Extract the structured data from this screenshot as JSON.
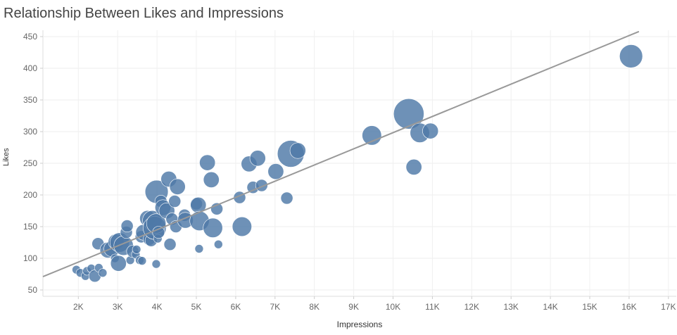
{
  "title": "Relationship Between Likes and Impressions",
  "chart_data": {
    "type": "scatter",
    "title": "Relationship Between Likes and Impressions",
    "xlabel": "Impressions",
    "ylabel": "Likes",
    "xlim": [
      1100,
      17200
    ],
    "ylim": [
      40,
      460
    ],
    "x_ticks": [
      2000,
      3000,
      4000,
      5000,
      6000,
      7000,
      8000,
      9000,
      10000,
      11000,
      12000,
      13000,
      14000,
      15000,
      16000,
      17000
    ],
    "x_tick_labels": [
      "2K",
      "3K",
      "4K",
      "5K",
      "6K",
      "7K",
      "8K",
      "9K",
      "10K",
      "11K",
      "12K",
      "13K",
      "14K",
      "15K",
      "16K",
      "17K"
    ],
    "y_ticks": [
      50,
      100,
      150,
      200,
      250,
      300,
      350,
      400,
      450
    ],
    "y_tick_labels": [
      "50",
      "100",
      "150",
      "200",
      "250",
      "300",
      "350",
      "400",
      "450"
    ],
    "grid": true,
    "marker_color": "#4e79a7",
    "trend_color": "#999999",
    "trendline": {
      "x": [
        1100,
        16250
      ],
      "y": [
        71,
        458
      ]
    },
    "points": [
      {
        "x": 1950,
        "y": 82,
        "s": 1
      },
      {
        "x": 2050,
        "y": 77,
        "s": 1
      },
      {
        "x": 2180,
        "y": 72,
        "s": 1
      },
      {
        "x": 2220,
        "y": 80,
        "s": 1
      },
      {
        "x": 2330,
        "y": 84,
        "s": 1
      },
      {
        "x": 2420,
        "y": 72,
        "s": 2
      },
      {
        "x": 2520,
        "y": 85,
        "s": 1
      },
      {
        "x": 2620,
        "y": 77,
        "s": 1
      },
      {
        "x": 2500,
        "y": 123,
        "s": 2
      },
      {
        "x": 2750,
        "y": 113,
        "s": 3
      },
      {
        "x": 2850,
        "y": 115,
        "s": 3
      },
      {
        "x": 2930,
        "y": 100,
        "s": 1
      },
      {
        "x": 2960,
        "y": 126,
        "s": 3
      },
      {
        "x": 3020,
        "y": 92,
        "s": 3
      },
      {
        "x": 3050,
        "y": 125,
        "s": 4
      },
      {
        "x": 3150,
        "y": 120,
        "s": 4
      },
      {
        "x": 3220,
        "y": 141,
        "s": 2
      },
      {
        "x": 3240,
        "y": 151,
        "s": 2
      },
      {
        "x": 3320,
        "y": 97,
        "s": 1
      },
      {
        "x": 3380,
        "y": 111,
        "s": 2
      },
      {
        "x": 3460,
        "y": 106,
        "s": 1
      },
      {
        "x": 3480,
        "y": 114,
        "s": 1
      },
      {
        "x": 3560,
        "y": 97,
        "s": 1
      },
      {
        "x": 3620,
        "y": 96,
        "s": 1
      },
      {
        "x": 3600,
        "y": 134,
        "s": 2
      },
      {
        "x": 3660,
        "y": 141,
        "s": 3
      },
      {
        "x": 3760,
        "y": 163,
        "s": 3
      },
      {
        "x": 3800,
        "y": 130,
        "s": 2
      },
      {
        "x": 3850,
        "y": 128,
        "s": 2
      },
      {
        "x": 3880,
        "y": 160,
        "s": 4
      },
      {
        "x": 3940,
        "y": 148,
        "s": 5
      },
      {
        "x": 3980,
        "y": 155,
        "s": 4
      },
      {
        "x": 3990,
        "y": 205,
        "s": 5
      },
      {
        "x": 4020,
        "y": 131,
        "s": 1
      },
      {
        "x": 4040,
        "y": 141,
        "s": 2
      },
      {
        "x": 3980,
        "y": 91,
        "s": 1
      },
      {
        "x": 4100,
        "y": 190,
        "s": 2
      },
      {
        "x": 4150,
        "y": 180,
        "s": 3
      },
      {
        "x": 4250,
        "y": 175,
        "s": 3
      },
      {
        "x": 4300,
        "y": 225,
        "s": 3
      },
      {
        "x": 4330,
        "y": 122,
        "s": 2
      },
      {
        "x": 4380,
        "y": 162,
        "s": 2
      },
      {
        "x": 4450,
        "y": 190,
        "s": 2
      },
      {
        "x": 4480,
        "y": 150,
        "s": 2
      },
      {
        "x": 4520,
        "y": 213,
        "s": 3
      },
      {
        "x": 4700,
        "y": 168,
        "s": 2
      },
      {
        "x": 4720,
        "y": 160,
        "s": 3
      },
      {
        "x": 5000,
        "y": 186,
        "s": 2
      },
      {
        "x": 5050,
        "y": 184,
        "s": 3
      },
      {
        "x": 5080,
        "y": 159,
        "s": 4
      },
      {
        "x": 5070,
        "y": 115,
        "s": 1
      },
      {
        "x": 5280,
        "y": 251,
        "s": 3
      },
      {
        "x": 5380,
        "y": 224,
        "s": 3
      },
      {
        "x": 5420,
        "y": 148,
        "s": 4
      },
      {
        "x": 5520,
        "y": 178,
        "s": 2
      },
      {
        "x": 5560,
        "y": 122,
        "s": 1
      },
      {
        "x": 6100,
        "y": 196,
        "s": 2
      },
      {
        "x": 6160,
        "y": 150,
        "s": 4
      },
      {
        "x": 6340,
        "y": 249,
        "s": 3
      },
      {
        "x": 6440,
        "y": 212,
        "s": 2
      },
      {
        "x": 6560,
        "y": 258,
        "s": 3
      },
      {
        "x": 6660,
        "y": 215,
        "s": 2
      },
      {
        "x": 7020,
        "y": 237,
        "s": 3
      },
      {
        "x": 7300,
        "y": 195,
        "s": 2
      },
      {
        "x": 7400,
        "y": 265,
        "s": 6
      },
      {
        "x": 7580,
        "y": 270,
        "s": 3
      },
      {
        "x": 9460,
        "y": 294,
        "s": 4
      },
      {
        "x": 10400,
        "y": 328,
        "s": 7
      },
      {
        "x": 10530,
        "y": 244,
        "s": 3
      },
      {
        "x": 10680,
        "y": 298,
        "s": 4
      },
      {
        "x": 10950,
        "y": 301,
        "s": 3
      },
      {
        "x": 16050,
        "y": 419,
        "s": 5
      }
    ]
  }
}
